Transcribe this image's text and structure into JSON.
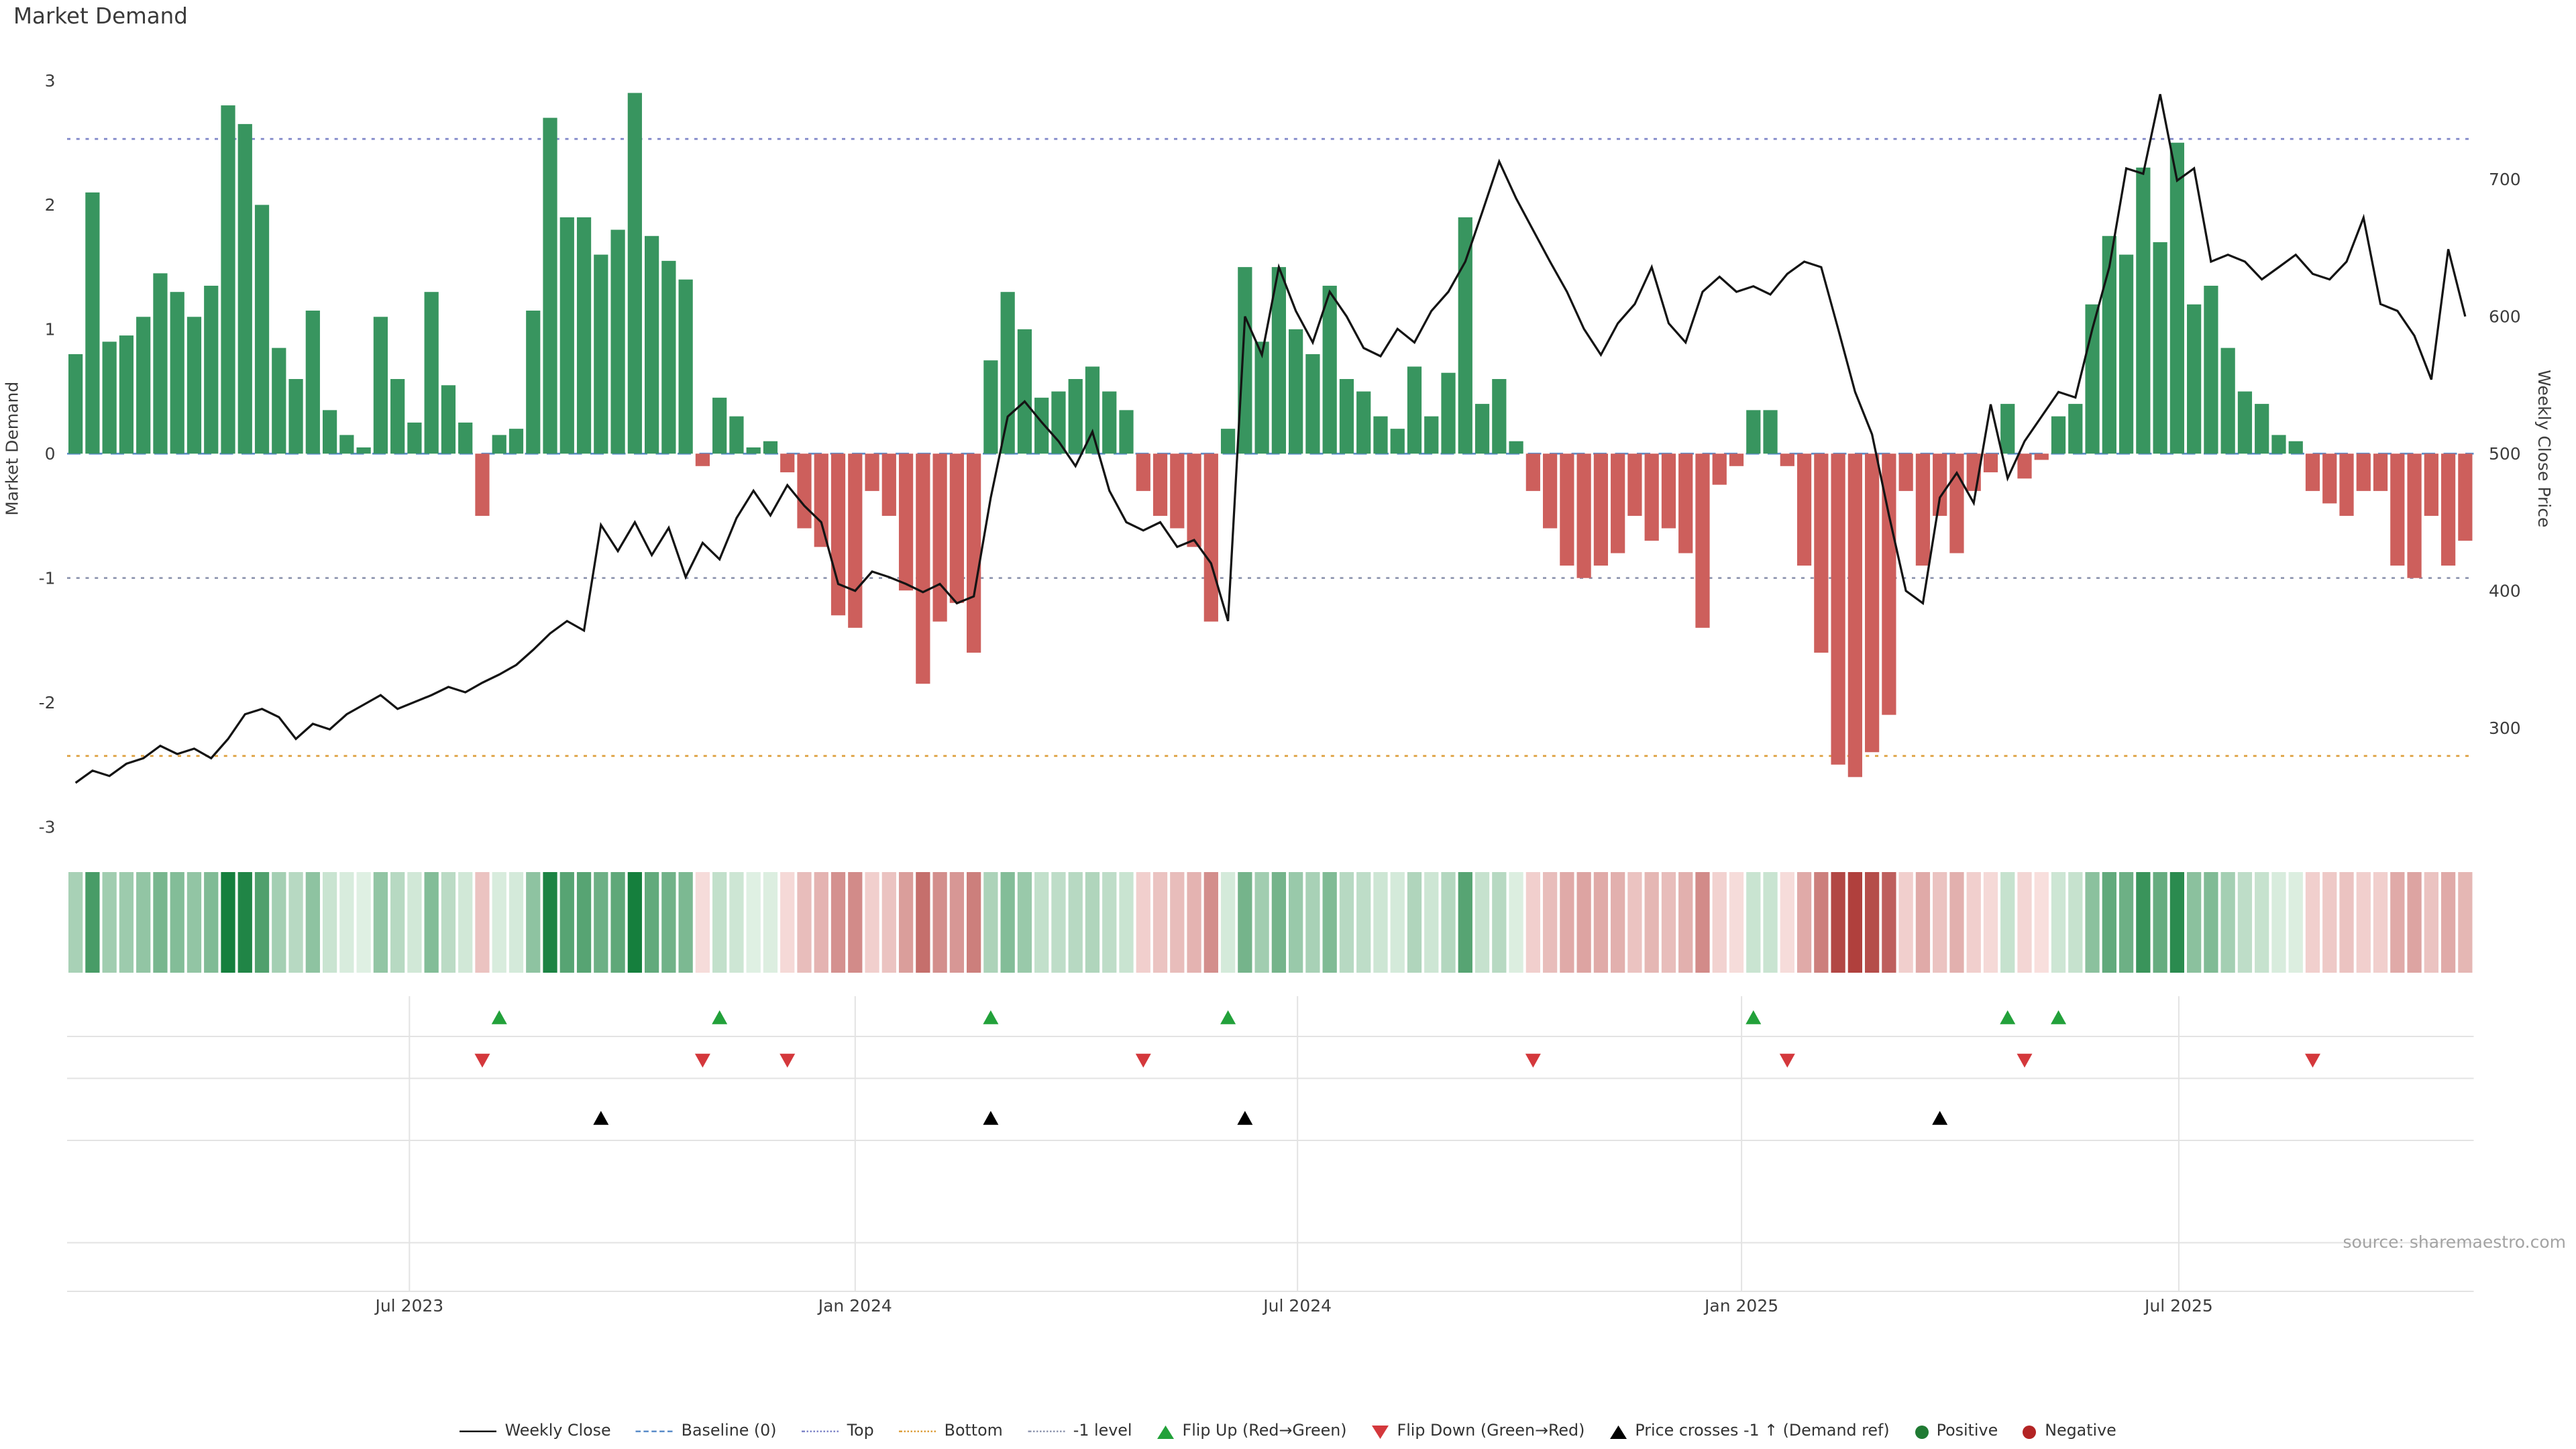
{
  "title": "Market Demand",
  "source": "source: sharemaestro.com",
  "axes": {
    "left_label": "Market Demand",
    "right_label": "Weekly Close Price",
    "left_ticks": [
      -3,
      -2,
      -1,
      0,
      1,
      2,
      3
    ],
    "right_ticks": [
      300,
      400,
      500,
      600,
      700
    ],
    "x_ticks": [
      {
        "week": 19.7,
        "label": "Jul 2023"
      },
      {
        "week": 46.0,
        "label": "Jan 2024"
      },
      {
        "week": 72.1,
        "label": "Jul 2024"
      },
      {
        "week": 98.3,
        "label": "Jan 2025"
      },
      {
        "week": 124.1,
        "label": "Jul 2025"
      }
    ]
  },
  "colors": {
    "positive": "#38955f",
    "negative": "#cd5f5c",
    "price_line": "#141414",
    "flip_up": "#22a13a",
    "flip_down": "#d4383c",
    "price_cross": "#000000",
    "heat_pos_light": "#e3f2e6",
    "heat_pos_dark": "#157f3d",
    "heat_neg_light": "#f9e2e0",
    "heat_neg_dark": "#aa3431",
    "baseline": "#5c8dc9",
    "top": "#8087c9",
    "bottom": "#dd9f3e",
    "minus1": "#9097b0",
    "panel_grid": "#e3e3e3"
  },
  "chart_data": {
    "type": "bar+line",
    "title": "Market Demand",
    "frequency": "weekly",
    "ylim_left": [
      -3,
      3
    ],
    "ylim_right": [
      228,
      772
    ],
    "demand": [
      0.8,
      2.1,
      0.9,
      0.95,
      1.1,
      1.45,
      1.3,
      1.1,
      1.35,
      2.8,
      2.65,
      2.0,
      0.85,
      0.6,
      1.15,
      0.35,
      0.15,
      0.05,
      1.1,
      0.6,
      0.25,
      1.3,
      0.55,
      0.25,
      -0.5,
      0.15,
      0.2,
      1.15,
      2.7,
      1.9,
      1.9,
      1.6,
      1.8,
      2.9,
      1.75,
      1.55,
      1.4,
      -0.1,
      0.45,
      0.3,
      0.05,
      0.1,
      -0.15,
      -0.6,
      -0.75,
      -1.3,
      -1.4,
      -0.3,
      -0.5,
      -1.1,
      -1.85,
      -1.35,
      -1.2,
      -1.6,
      0.75,
      1.3,
      1.0,
      0.45,
      0.5,
      0.6,
      0.7,
      0.5,
      0.35,
      -0.3,
      -0.5,
      -0.6,
      -0.75,
      -1.35,
      0.2,
      1.5,
      0.9,
      1.5,
      1.0,
      0.8,
      1.35,
      0.6,
      0.5,
      0.3,
      0.2,
      0.7,
      0.3,
      0.65,
      1.9,
      0.4,
      0.6,
      0.1,
      -0.3,
      -0.6,
      -0.9,
      -1.0,
      -0.9,
      -0.8,
      -0.5,
      -0.7,
      -0.6,
      -0.8,
      -1.4,
      -0.25,
      -0.1,
      0.35,
      0.35,
      -0.1,
      -0.9,
      -1.6,
      -2.5,
      -2.6,
      -2.4,
      -2.1,
      -0.3,
      -0.9,
      -0.5,
      -0.8,
      -0.3,
      -0.15,
      0.4,
      -0.2,
      -0.05,
      0.3,
      0.4,
      1.2,
      1.75,
      1.6,
      2.3,
      1.7,
      2.5,
      1.2,
      1.35,
      0.85,
      0.5,
      0.4,
      0.15,
      0.1,
      -0.3,
      -0.4,
      -0.5,
      -0.3,
      -0.3,
      -0.9,
      -1.0,
      -0.5,
      -0.9,
      -0.7
    ],
    "price": [
      260,
      269,
      265,
      274,
      278,
      287,
      281,
      285,
      278,
      292,
      310,
      314,
      308,
      292,
      303,
      299,
      310,
      317,
      324,
      314,
      319,
      324,
      330,
      326,
      333,
      339,
      346,
      357,
      369,
      378,
      371,
      448,
      429,
      450,
      426,
      446,
      410,
      435,
      423,
      453,
      473,
      455,
      477,
      462,
      450,
      405,
      400,
      414,
      410,
      405,
      399,
      405,
      391,
      396,
      468,
      527,
      538,
      523,
      509,
      491,
      516,
      473,
      450,
      444,
      450,
      432,
      437,
      420,
      378,
      600,
      572,
      636,
      604,
      581,
      618,
      600,
      577,
      571,
      591,
      581,
      604,
      618,
      640,
      676,
      713,
      686,
      663,
      640,
      618,
      591,
      572,
      595,
      609,
      636,
      595,
      581,
      618,
      629,
      618,
      622,
      616,
      631,
      640,
      636,
      591,
      545,
      514,
      455,
      400,
      391,
      468,
      486,
      464,
      536,
      482,
      509,
      527,
      545,
      541,
      591,
      636,
      708,
      704,
      762,
      699,
      708,
      640,
      645,
      640,
      627,
      636,
      645,
      631,
      627,
      640,
      672,
      609,
      604,
      586,
      554,
      649,
      600
    ],
    "reference_lines": [
      {
        "key": "baseline",
        "label": "Baseline (0)",
        "value": 0,
        "style": "dashed",
        "color": "#5c8dc9"
      },
      {
        "key": "top",
        "label": "Top",
        "value": 2.53,
        "style": "dotted",
        "color": "#8087c9"
      },
      {
        "key": "bottom",
        "label": "Bottom",
        "value": -2.43,
        "style": "dotted",
        "color": "#dd9f3e"
      },
      {
        "key": "minus1",
        "label": "-1 level",
        "value": -1,
        "style": "dotted",
        "color": "#9097b0"
      }
    ],
    "markers": {
      "flip_up_weeks": [
        25,
        38,
        54,
        68,
        99,
        114,
        117
      ],
      "flip_down_weeks": [
        24,
        37,
        42,
        63,
        86,
        101,
        115,
        132
      ],
      "price_cross_weeks": [
        31,
        54,
        69,
        110
      ]
    }
  },
  "legend": [
    {
      "swatch": "line",
      "color": "#141414",
      "label": "Weekly Close"
    },
    {
      "swatch": "dashed",
      "color": "#5c8dc9",
      "label": "Baseline (0)"
    },
    {
      "swatch": "dotted",
      "color": "#8087c9",
      "label": "Top"
    },
    {
      "swatch": "dotted",
      "color": "#dd9f3e",
      "label": "Bottom"
    },
    {
      "swatch": "dotted",
      "color": "#9097b0",
      "label": "-1 level"
    },
    {
      "swatch": "tri-up",
      "color": "#22a13a",
      "label": "Flip Up (Red→Green)"
    },
    {
      "swatch": "tri-down",
      "color": "#d4383c",
      "label": "Flip Down (Green→Red)"
    },
    {
      "swatch": "tri-up",
      "color": "#000000",
      "label": "Price crosses -1 ↑ (Demand ref)"
    },
    {
      "swatch": "dot",
      "color": "#1f7a33",
      "label": "Positive"
    },
    {
      "swatch": "dot",
      "color": "#b32424",
      "label": "Negative"
    }
  ]
}
